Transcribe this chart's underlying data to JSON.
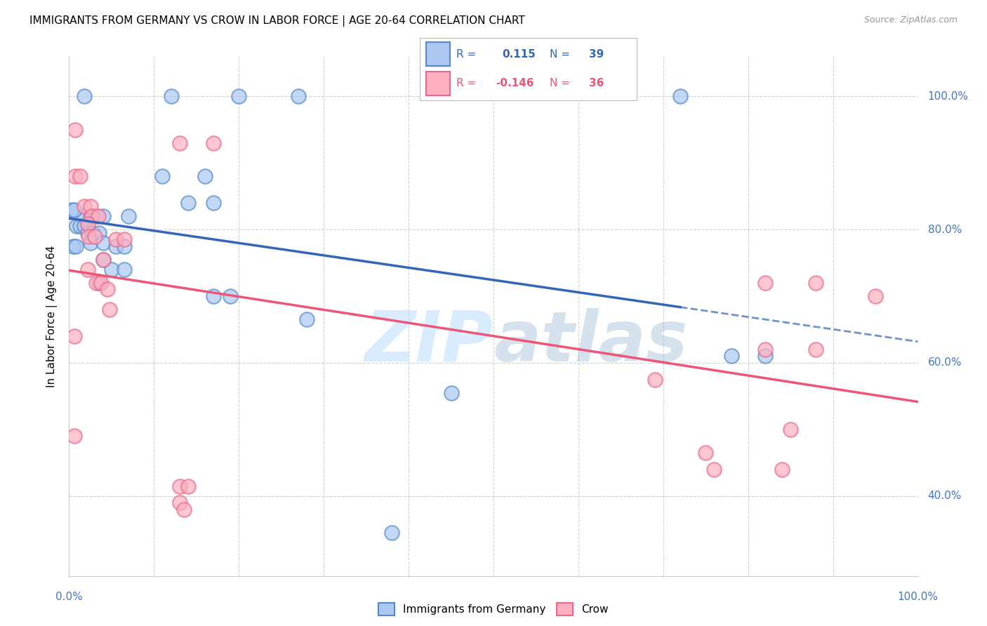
{
  "title": "IMMIGRANTS FROM GERMANY VS CROW IN LABOR FORCE | AGE 20-64 CORRELATION CHART",
  "source": "Source: ZipAtlas.com",
  "ylabel": "In Labor Force | Age 20-64",
  "legend_label1": "Immigrants from Germany",
  "legend_label2": "Crow",
  "R1": "0.115",
  "N1": "39",
  "R2": "-0.146",
  "N2": "36",
  "blue_color": "#aac8f0",
  "pink_color": "#ffb0c0",
  "blue_edge_color": "#5588cc",
  "pink_edge_color": "#ee6688",
  "blue_line_color": "#3366bb",
  "pink_line_color": "#ee5577",
  "right_axis_color": "#4477cc",
  "background_color": "#ffffff",
  "grid_color": "#cccccc",
  "watermark_color": "#bbddff",
  "blue_scatter": [
    [
      0.018,
      1.0
    ],
    [
      0.12,
      1.0
    ],
    [
      0.2,
      1.0
    ],
    [
      0.27,
      1.0
    ],
    [
      0.72,
      1.0
    ],
    [
      0.11,
      0.88
    ],
    [
      0.16,
      0.88
    ],
    [
      0.14,
      0.84
    ],
    [
      0.17,
      0.84
    ],
    [
      0.017,
      0.82
    ],
    [
      0.025,
      0.82
    ],
    [
      0.032,
      0.82
    ],
    [
      0.04,
      0.82
    ],
    [
      0.07,
      0.82
    ],
    [
      0.009,
      0.805
    ],
    [
      0.013,
      0.805
    ],
    [
      0.018,
      0.805
    ],
    [
      0.022,
      0.795
    ],
    [
      0.028,
      0.795
    ],
    [
      0.035,
      0.795
    ],
    [
      0.025,
      0.78
    ],
    [
      0.04,
      0.78
    ],
    [
      0.055,
      0.775
    ],
    [
      0.065,
      0.775
    ],
    [
      0.04,
      0.755
    ],
    [
      0.05,
      0.74
    ],
    [
      0.065,
      0.74
    ],
    [
      0.035,
      0.72
    ],
    [
      0.17,
      0.7
    ],
    [
      0.19,
      0.7
    ],
    [
      0.28,
      0.665
    ],
    [
      0.45,
      0.555
    ],
    [
      0.78,
      0.61
    ],
    [
      0.82,
      0.61
    ],
    [
      0.005,
      0.775
    ],
    [
      0.008,
      0.775
    ],
    [
      0.003,
      0.83
    ],
    [
      0.006,
      0.83
    ],
    [
      0.38,
      0.345
    ]
  ],
  "pink_scatter": [
    [
      0.007,
      0.95
    ],
    [
      0.13,
      0.93
    ],
    [
      0.17,
      0.93
    ],
    [
      0.007,
      0.88
    ],
    [
      0.013,
      0.88
    ],
    [
      0.018,
      0.835
    ],
    [
      0.025,
      0.835
    ],
    [
      0.027,
      0.82
    ],
    [
      0.034,
      0.82
    ],
    [
      0.022,
      0.808
    ],
    [
      0.023,
      0.79
    ],
    [
      0.03,
      0.79
    ],
    [
      0.055,
      0.785
    ],
    [
      0.065,
      0.785
    ],
    [
      0.04,
      0.755
    ],
    [
      0.022,
      0.74
    ],
    [
      0.032,
      0.72
    ],
    [
      0.038,
      0.72
    ],
    [
      0.045,
      0.71
    ],
    [
      0.048,
      0.68
    ],
    [
      0.006,
      0.64
    ],
    [
      0.82,
      0.72
    ],
    [
      0.88,
      0.72
    ],
    [
      0.95,
      0.7
    ],
    [
      0.82,
      0.62
    ],
    [
      0.88,
      0.62
    ],
    [
      0.69,
      0.575
    ],
    [
      0.85,
      0.5
    ],
    [
      0.006,
      0.49
    ],
    [
      0.13,
      0.415
    ],
    [
      0.14,
      0.415
    ],
    [
      0.13,
      0.39
    ],
    [
      0.135,
      0.38
    ],
    [
      0.75,
      0.465
    ],
    [
      0.76,
      0.44
    ],
    [
      0.84,
      0.44
    ]
  ],
  "ylim_min": 0.28,
  "ylim_max": 1.06,
  "xlim_min": 0.0,
  "xlim_max": 1.0,
  "yticks": [
    0.4,
    0.6,
    0.8,
    1.0
  ],
  "ytick_labels": [
    "40.0%",
    "60.0%",
    "80.0%",
    "100.0%"
  ],
  "xtick_positions": [
    0.0,
    0.1,
    0.2,
    0.3,
    0.4,
    0.5,
    0.6,
    0.7,
    0.8,
    0.9,
    1.0
  ]
}
